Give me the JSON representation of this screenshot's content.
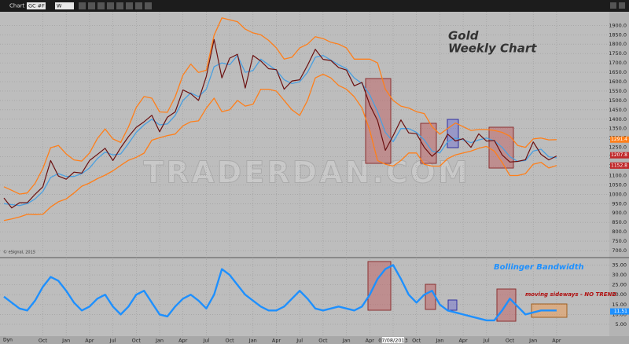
{
  "ui": {
    "window_title": "Chart",
    "symbol": "GC #F",
    "interval": "W",
    "mode": "Dyn",
    "copyright": "© eSignal, 2015",
    "watermark": "TRADERDAN.COM"
  },
  "chart_data": {
    "type": "line",
    "title": "Gold",
    "subtitle": "Weekly Chart",
    "categories": [
      null,
      null,
      null,
      null,
      null,
      "Oct",
      null,
      null,
      "Jan",
      null,
      null,
      "Apr",
      null,
      null,
      "Jul",
      null,
      null,
      "Oct",
      null,
      null,
      "Jan",
      null,
      null,
      "Apr",
      null,
      null,
      "Jul",
      null,
      null,
      "Oct",
      null,
      null,
      "Jan",
      null,
      null,
      "Apr",
      null,
      null,
      "Jul",
      null,
      null,
      "Oct",
      null,
      null,
      "Jan",
      null,
      null,
      "Apr",
      null,
      null,
      "07/08/2013",
      null,
      null,
      "Oct",
      null,
      null,
      "Jan",
      null,
      null,
      "Apr",
      null,
      null,
      "Jul",
      null,
      null,
      "Oct",
      null,
      null,
      "Jan",
      null,
      null,
      "Apr"
    ],
    "series": [
      {
        "name": "Upper Band",
        "color": "#ff7f1a",
        "values": [
          1040,
          1021,
          1001,
          1007,
          1058,
          1137,
          1248,
          1260,
          1215,
          1183,
          1177,
          1220,
          1297,
          1348,
          1295,
          1276,
          1359,
          1463,
          1521,
          1512,
          1439,
          1437,
          1519,
          1635,
          1694,
          1649,
          1661,
          1848,
          1940,
          1930,
          1920,
          1880,
          1860,
          1850,
          1820,
          1780,
          1720,
          1730,
          1780,
          1800,
          1840,
          1830,
          1810,
          1800,
          1780,
          1720,
          1720,
          1720,
          1700,
          1560,
          1500,
          1470,
          1460,
          1440,
          1430,
          1360,
          1320,
          1350,
          1380,
          1360,
          1340,
          1345,
          1345,
          1340,
          1330,
          1310,
          1260,
          1250,
          1295,
          1300,
          1290,
          1291
        ]
      },
      {
        "name": "Lower Band",
        "color": "#ff7f1a",
        "values": [
          860,
          869,
          879,
          893,
          892,
          893,
          932,
          960,
          975,
          1007,
          1043,
          1060,
          1083,
          1102,
          1125,
          1154,
          1181,
          1197,
          1219,
          1288,
          1301,
          1313,
          1321,
          1365,
          1386,
          1391,
          1459,
          1512,
          1440,
          1450,
          1500,
          1470,
          1480,
          1560,
          1560,
          1550,
          1500,
          1450,
          1420,
          1500,
          1620,
          1640,
          1620,
          1580,
          1560,
          1520,
          1460,
          1340,
          1180,
          1160,
          1150,
          1180,
          1220,
          1220,
          1160,
          1150,
          1150,
          1190,
          1210,
          1220,
          1230,
          1245,
          1255,
          1230,
          1170,
          1100,
          1100,
          1110,
          1160,
          1170,
          1140,
          1153
        ]
      },
      {
        "name": "Moving Average",
        "color": "#4aa0e0",
        "values": [
          950,
          945,
          940,
          950,
          975,
          1015,
          1090,
          1110,
          1095,
          1095,
          1110,
          1140,
          1190,
          1225,
          1210,
          1215,
          1270,
          1330,
          1370,
          1400,
          1370,
          1375,
          1420,
          1500,
          1540,
          1520,
          1560,
          1680,
          1700,
          1690,
          1740,
          1650,
          1660,
          1720,
          1690,
          1660,
          1610,
          1590,
          1600,
          1650,
          1730,
          1740,
          1715,
          1690,
          1670,
          1620,
          1590,
          1530,
          1440,
          1330,
          1280,
          1350,
          1350,
          1330,
          1290,
          1230,
          1220,
          1280,
          1300,
          1290,
          1275,
          1290,
          1300,
          1285,
          1250,
          1200,
          1175,
          1180,
          1230,
          1240,
          1200,
          1195
        ]
      },
      {
        "name": "Gold",
        "color": "#6b1010",
        "values": [
          980,
          927,
          955,
          955,
          1000,
          1040,
          1180,
          1097,
          1080,
          1118,
          1113,
          1180,
          1212,
          1245,
          1180,
          1248,
          1307,
          1357,
          1386,
          1421,
          1333,
          1411,
          1439,
          1556,
          1536,
          1500,
          1628,
          1825,
          1620,
          1725,
          1746,
          1566,
          1740,
          1710,
          1669,
          1664,
          1560,
          1604,
          1610,
          1687,
          1773,
          1719,
          1713,
          1675,
          1662,
          1578,
          1596,
          1476,
          1393,
          1234,
          1312,
          1396,
          1327,
          1323,
          1250,
          1202,
          1240,
          1321,
          1284,
          1296,
          1250,
          1322,
          1283,
          1287,
          1210,
          1172,
          1175,
          1184,
          1279,
          1213,
          1183,
          1204
        ]
      },
      {
        "name": "Bollinger Bandwidth",
        "color": "#1e90ff",
        "axis": "y2",
        "values": [
          19,
          16,
          13,
          12,
          17,
          24,
          29,
          27,
          22,
          16,
          12,
          14,
          18,
          20,
          14,
          10,
          14,
          20,
          22,
          16,
          10,
          9,
          14,
          18,
          20,
          17,
          13,
          20,
          33,
          30,
          25,
          20,
          17,
          14,
          12,
          12,
          14,
          18,
          22,
          18,
          13,
          12,
          13,
          14,
          13,
          12,
          14,
          20,
          28,
          33,
          35,
          28,
          20,
          16,
          20,
          22,
          15,
          12,
          11,
          10,
          9,
          8,
          7,
          7,
          12,
          18,
          14,
          10,
          11,
          12,
          12,
          12
        ]
      }
    ],
    "ylim": [
      675,
      1960
    ],
    "yticks": [
      {
        "value": 700,
        "label": "700.0"
      },
      {
        "value": 750,
        "label": "750.0"
      },
      {
        "value": 800,
        "label": "800.0"
      },
      {
        "value": 850,
        "label": "850.0"
      },
      {
        "value": 900,
        "label": "900.0"
      },
      {
        "value": 950,
        "label": "950.0"
      },
      {
        "value": 1000,
        "label": "1000.0"
      },
      {
        "value": 1050,
        "label": "1050.0"
      },
      {
        "value": 1100,
        "label": "1100.0"
      },
      {
        "value": 1150,
        "label": "1150.0"
      },
      {
        "value": 1200,
        "label": "1200.0"
      },
      {
        "value": 1250,
        "label": "1250.0"
      },
      {
        "value": 1300,
        "label": "1300.0"
      },
      {
        "value": 1350,
        "label": "1350.0"
      },
      {
        "value": 1400,
        "label": "1400.0"
      },
      {
        "value": 1450,
        "label": "1450.0"
      },
      {
        "value": 1500,
        "label": "1500.0"
      },
      {
        "value": 1550,
        "label": "1550.0"
      },
      {
        "value": 1600,
        "label": "1600.0"
      },
      {
        "value": 1650,
        "label": "1650.0"
      },
      {
        "value": 1700,
        "label": "1700.0"
      },
      {
        "value": 1750,
        "label": "1750.0"
      },
      {
        "value": 1800,
        "label": "1800.0"
      },
      {
        "value": 1850,
        "label": "1850.0"
      },
      {
        "value": 1900,
        "label": "1900.0"
      }
    ],
    "y2lim": [
      -1,
      38
    ],
    "y2ticks": [
      {
        "value": 5,
        "label": "5.00"
      },
      {
        "value": 10,
        "label": "10.00"
      },
      {
        "value": 15,
        "label": "15.00"
      },
      {
        "value": 20,
        "label": "20.00"
      },
      {
        "value": 25,
        "label": "25.00"
      },
      {
        "value": 30,
        "label": "30.00"
      },
      {
        "value": 35,
        "label": "35.00"
      }
    ],
    "grid": true,
    "annotations": [
      {
        "text": "1291.4",
        "color": "#ff7f1a",
        "value": 1291.4
      },
      {
        "text": "1207.8",
        "color": "#c0282a",
        "value": 1207.8
      },
      {
        "text": "1152.8",
        "color": "#c0282a",
        "value": 1152.8
      },
      {
        "text": "Bollinger Bandwidth",
        "color": "#1e90ff"
      },
      {
        "text": "moving sideways - NO TREND",
        "color": "#b01010"
      },
      {
        "text": "11.51",
        "color": "#1e90ff",
        "value": 11.51
      }
    ]
  }
}
